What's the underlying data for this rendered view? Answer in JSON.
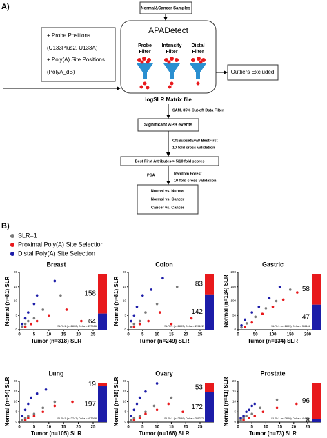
{
  "diagram": {
    "label": "A)",
    "samples": "Normal&Cancer Samples",
    "inputs": [
      "+ Probe Positions",
      "(U133Plus2, U133A)",
      "+ Poly(A) Site Positions",
      "(PolyA_dB)"
    ],
    "tool": "APADetect",
    "filters": [
      [
        "Probe",
        "Filter"
      ],
      [
        "Intensity",
        "Filter"
      ],
      [
        "Distal",
        "Filter"
      ]
    ],
    "outliers": "Outliers Excluded",
    "matrix": "logSLR Matrix file",
    "step1": "SAM, 85% Cut-off Data Filter",
    "events": "Significant APA events",
    "step2": [
      "CfsSubsetEval/ BestFirst",
      "10-fold cross validation"
    ],
    "attributes": "Best First Attributes-> 5/10 fold scores",
    "pca": "PCA",
    "step3": [
      "Random Forest",
      "10-fold cross validation"
    ],
    "comparisons": [
      "Normal vs. Normal",
      "Normal vs. Cancer",
      "Cancer vs. Cancer"
    ]
  },
  "panel_b_label": "B)",
  "legend": [
    {
      "name": "SLR=1",
      "color": "#7a7a7a"
    },
    {
      "name": "Proximal Poly(A) Site Selection",
      "color": "#e8191c"
    },
    {
      "name": "Distal  Poly(A) Site Selection",
      "color": "#1c1ca8"
    }
  ],
  "chart_data": [
    {
      "type": "scatter",
      "title": "Breast",
      "x_label": "Tumor (n=318) SLR",
      "y_label": "Normal (n=81) SLR",
      "annotation": "SLR=1 (n=2802) Delta = 2.7966",
      "xlim": [
        0,
        25
      ],
      "xticks": [
        0,
        5,
        10,
        15,
        20,
        25
      ],
      "ylim": [
        0,
        20
      ],
      "yticks": [
        0,
        5,
        10,
        15,
        20
      ],
      "series": [
        {
          "x": [
            1,
            2,
            3,
            5,
            8,
            14
          ],
          "values": [
            1,
            2,
            3,
            4,
            7,
            12
          ]
        },
        {
          "x": [
            2,
            4,
            6,
            10,
            16,
            21
          ],
          "values": [
            1,
            2,
            3,
            5,
            7,
            3
          ]
        },
        {
          "x": [
            1,
            2,
            3,
            5,
            6,
            12
          ],
          "values": [
            2,
            4,
            6,
            9,
            12,
            17
          ]
        }
      ],
      "bar_values": [
        158,
        64
      ],
      "bar_colors": [
        "#e8191c",
        "#1c1ca8"
      ]
    },
    {
      "type": "scatter",
      "title": "Colon",
      "x_label": "Tumor (n=249) SLR",
      "y_label": "Normal (n=81) SLR",
      "annotation": "SLR=1 (n=2803) Delta = 2.9122",
      "xlim": [
        0,
        25
      ],
      "xticks": [
        0,
        5,
        10,
        15,
        20,
        25
      ],
      "ylim": [
        0,
        20
      ],
      "yticks": [
        0,
        5,
        10,
        15,
        20
      ],
      "series": [
        {
          "x": [
            1,
            2,
            4,
            6,
            10,
            17
          ],
          "values": [
            1,
            2,
            3,
            6,
            9,
            15
          ]
        },
        {
          "x": [
            2,
            4,
            7,
            11,
            15,
            22
          ],
          "values": [
            1,
            2,
            3,
            6,
            2,
            4
          ]
        },
        {
          "x": [
            1,
            2,
            3,
            5,
            8,
            12
          ],
          "values": [
            3,
            5,
            8,
            12,
            14,
            18
          ]
        }
      ],
      "bar_values": [
        83,
        142
      ],
      "bar_colors": [
        "#e8191c",
        "#1c1ca8"
      ]
    },
    {
      "type": "scatter",
      "title": "Gastric",
      "x_label": "Tumor (n=134) SLR",
      "y_label": "Normal (n=134) SLR",
      "annotation": "SLR=1 (n=1803) Delta = 3.6166",
      "xlim": [
        0,
        200
      ],
      "xticks": [
        0,
        50,
        100,
        150,
        200
      ],
      "ylim": [
        0,
        200
      ],
      "yticks": [
        0,
        50,
        100,
        150,
        200
      ],
      "series": [
        {
          "x": [
            10,
            25,
            50,
            80,
            110,
            150
          ],
          "values": [
            8,
            22,
            45,
            75,
            100,
            140
          ]
        },
        {
          "x": [
            20,
            40,
            70,
            100,
            130,
            170
          ],
          "values": [
            10,
            25,
            55,
            80,
            105,
            130
          ]
        },
        {
          "x": [
            10,
            20,
            40,
            60,
            90,
            120
          ],
          "values": [
            15,
            35,
            60,
            80,
            110,
            150
          ]
        }
      ],
      "bar_values": [
        58,
        47
      ],
      "bar_colors": [
        "#e8191c",
        "#1c1ca8"
      ]
    },
    {
      "type": "scatter",
      "title": "Lung",
      "x_label": "Tumor (n=105) SLR",
      "y_label": "Normal (n=54) SLR",
      "annotation": "SLR=1 (n=2747) Delta = 4.7698",
      "xlim": [
        0,
        25
      ],
      "xticks": [
        0,
        5,
        10,
        15,
        20,
        25
      ],
      "ylim": [
        0,
        20
      ],
      "yticks": [
        0,
        5,
        10,
        15,
        20
      ],
      "series": [
        {
          "x": [
            1,
            2,
            3,
            5,
            8,
            12
          ],
          "values": [
            1,
            2,
            3,
            4,
            7,
            10
          ]
        },
        {
          "x": [
            2,
            3,
            5,
            8,
            12,
            18
          ],
          "values": [
            1,
            2,
            3,
            5,
            8,
            10
          ]
        },
        {
          "x": [
            1,
            2,
            3,
            4,
            6,
            9
          ],
          "values": [
            3,
            6,
            9,
            12,
            14,
            16
          ]
        }
      ],
      "bar_values": [
        19,
        197
      ],
      "bar_colors": [
        "#e8191c",
        "#1c1ca8"
      ]
    },
    {
      "type": "scatter",
      "title": "Ovary",
      "x_label": "Tumor (n=166) SLR",
      "y_label": "Normal (n=38) SLR",
      "annotation": "SLR=1 (n=2559) Delta = 3.9272",
      "xlim": [
        0,
        25
      ],
      "xticks": [
        0,
        5,
        10,
        15,
        20,
        25
      ],
      "ylim": [
        0,
        20
      ],
      "yticks": [
        0,
        5,
        10,
        15,
        20
      ],
      "series": [
        {
          "x": [
            1,
            2,
            4,
            6,
            9,
            15
          ],
          "values": [
            1,
            2,
            3,
            5,
            8,
            12
          ]
        },
        {
          "x": [
            2,
            4,
            6,
            10,
            14,
            19
          ],
          "values": [
            1,
            2,
            4,
            6,
            9,
            5
          ]
        },
        {
          "x": [
            1,
            2,
            3,
            4,
            6,
            10
          ],
          "values": [
            3,
            6,
            9,
            12,
            15,
            19
          ]
        }
      ],
      "bar_values": [
        53,
        172
      ],
      "bar_colors": [
        "#e8191c",
        "#1c1ca8"
      ]
    },
    {
      "type": "scatter",
      "title": "Prostate",
      "x_label": "Tumor (n=73) SLR",
      "y_label": "Normal (n=41) SLR",
      "annotation": "SLR=1 (n=2860) Delta = 4.4674",
      "xlim": [
        0,
        25
      ],
      "xticks": [
        0,
        5,
        10,
        15,
        20,
        25
      ],
      "ylim": [
        0,
        20
      ],
      "yticks": [
        0,
        5,
        10,
        15,
        20
      ],
      "series": [
        {
          "x": [
            1,
            2,
            3,
            5,
            8,
            14
          ],
          "values": [
            1,
            2,
            3,
            4,
            7,
            11
          ]
        },
        {
          "x": [
            2,
            4,
            6,
            9,
            14,
            21
          ],
          "values": [
            1,
            2,
            3,
            5,
            7,
            9
          ]
        },
        {
          "x": [
            1,
            2,
            3,
            4,
            5,
            6
          ],
          "values": [
            2,
            3,
            5,
            6,
            8,
            9
          ]
        }
      ],
      "bar_values": [
        96,
        8
      ],
      "bar_colors": [
        "#e8191c",
        "#1c1ca8"
      ]
    }
  ]
}
